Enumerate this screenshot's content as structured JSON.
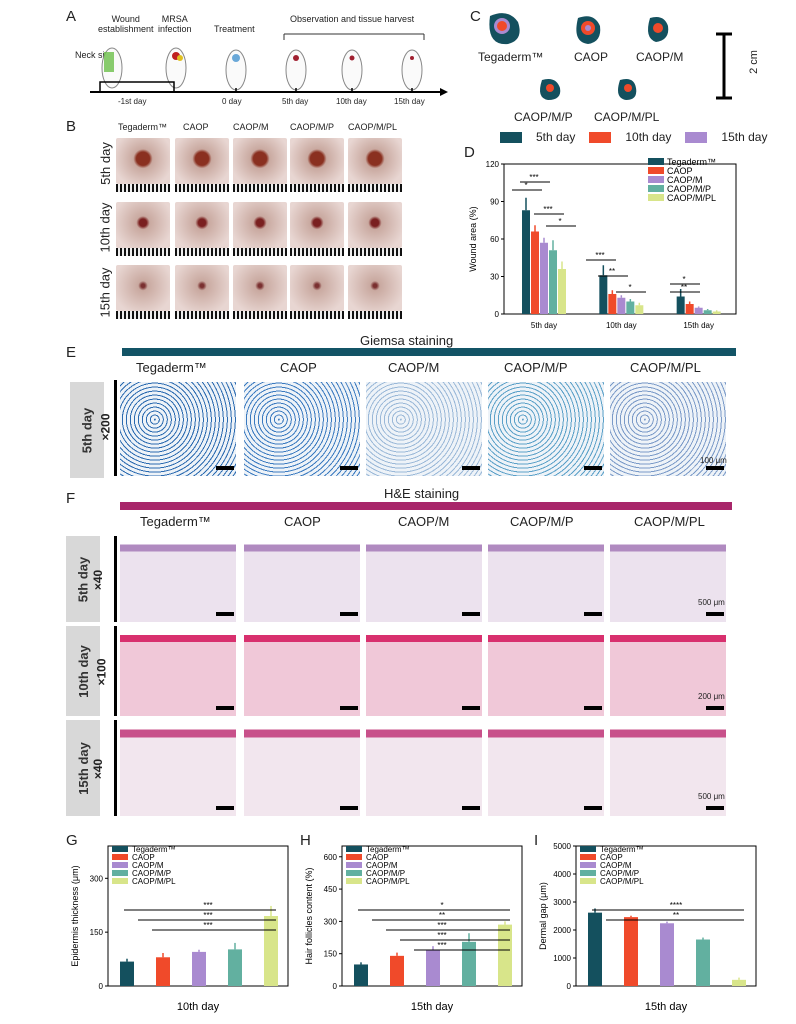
{
  "panels": {
    "A": "A",
    "B": "B",
    "C": "C",
    "D": "D",
    "E": "E",
    "F": "F",
    "G": "G",
    "H": "H",
    "I": "I"
  },
  "timeline": {
    "steps": [
      {
        "label": "Wound\nestablishment"
      },
      {
        "label": "MRSA\ninfection"
      },
      {
        "label": "Treatment"
      },
      {
        "label": "Observation and tissue harvest"
      }
    ],
    "neck_site": "Neck site",
    "ticks": [
      "-1st day",
      "0 day",
      "5th day",
      "10th day",
      "15th day"
    ]
  },
  "groups": [
    "Tegaderm™",
    "CAOP",
    "CAOP/M",
    "CAOP/M/P",
    "CAOP/M/PL"
  ],
  "panelB": {
    "rows": [
      "5th day",
      "10th day",
      "15th day"
    ]
  },
  "panelC": {
    "scale": "2 cm",
    "legend": [
      "5th day",
      "10th day",
      "15th day"
    ],
    "legend_colors": [
      "#14505e",
      "#f04a2a",
      "#a98ad0"
    ]
  },
  "panelE": {
    "title": "Giemsa staining",
    "row": "5th day",
    "mag": "×200",
    "scale": "100 μm"
  },
  "panelF": {
    "title": "H&E staining",
    "rows": [
      {
        "day": "5th day",
        "mag": "×40",
        "scale": "500 μm"
      },
      {
        "day": "10th day",
        "mag": "×100",
        "scale": "200 μm"
      },
      {
        "day": "15th day",
        "mag": "×40",
        "scale": "500 μm"
      }
    ]
  },
  "series_colors": [
    "#14505e",
    "#f04a2a",
    "#a98ad0",
    "#62b0a0",
    "#d8e58a"
  ],
  "chart_data": [
    {
      "type": "bar",
      "panel": "D",
      "ylabel": "Wound area (%)",
      "ylim": [
        0,
        120
      ],
      "yticks": [
        0,
        30,
        60,
        90,
        120
      ],
      "categories": [
        "5th day",
        "10th day",
        "15th day"
      ],
      "series": [
        {
          "name": "Tegaderm™",
          "values": [
            83,
            31,
            14
          ],
          "errors": [
            10,
            8,
            6
          ]
        },
        {
          "name": "CAOP",
          "values": [
            66,
            16,
            8
          ],
          "errors": [
            5,
            3,
            2
          ]
        },
        {
          "name": "CAOP/M",
          "values": [
            57,
            13,
            5
          ],
          "errors": [
            4,
            2,
            1
          ]
        },
        {
          "name": "CAOP/M/P",
          "values": [
            51,
            10,
            3
          ],
          "errors": [
            8,
            2,
            1
          ]
        },
        {
          "name": "CAOP/M/PL",
          "values": [
            36,
            7,
            2
          ],
          "errors": [
            6,
            2,
            1
          ]
        }
      ],
      "annotations": [
        "*",
        "***",
        "***",
        "*",
        "***",
        "**",
        "*",
        "*",
        "**"
      ]
    },
    {
      "type": "bar",
      "panel": "G",
      "ylabel": "Epidermis thickness (μm)",
      "xlabel": "10th day",
      "ylim": [
        0,
        390
      ],
      "yticks": [
        0,
        150,
        300
      ],
      "categories": [
        "Tegaderm™",
        "CAOP",
        "CAOP/M",
        "CAOP/M/P",
        "CAOP/M/PL"
      ],
      "values": [
        68,
        80,
        95,
        102,
        195
      ],
      "errors": [
        8,
        12,
        6,
        18,
        28
      ],
      "annotations": [
        "***",
        "***",
        "***"
      ]
    },
    {
      "type": "bar",
      "panel": "H",
      "ylabel": "Hair follicles content (%)",
      "xlabel": "15th day",
      "ylim": [
        0,
        650
      ],
      "yticks": [
        0,
        150,
        300,
        450,
        600
      ],
      "categories": [
        "Tegaderm™",
        "CAOP",
        "CAOP/M",
        "CAOP/M/P",
        "CAOP/M/PL"
      ],
      "values": [
        100,
        140,
        165,
        205,
        285
      ],
      "errors": [
        10,
        15,
        20,
        40,
        15
      ],
      "annotations": [
        "*",
        "**",
        "***",
        "***",
        "***"
      ]
    },
    {
      "type": "bar",
      "panel": "I",
      "ylabel": "Dermal gap (μm)",
      "xlabel": "15th day",
      "ylim": [
        0,
        5000
      ],
      "yticks": [
        0,
        1000,
        2000,
        3000,
        4000,
        5000
      ],
      "categories": [
        "Tegaderm™",
        "CAOP",
        "CAOP/M",
        "CAOP/M/P",
        "CAOP/M/PL"
      ],
      "values": [
        2620,
        2460,
        2240,
        1660,
        220
      ],
      "errors": [
        150,
        50,
        60,
        70,
        80
      ],
      "annotations": [
        "****",
        "**"
      ]
    }
  ]
}
